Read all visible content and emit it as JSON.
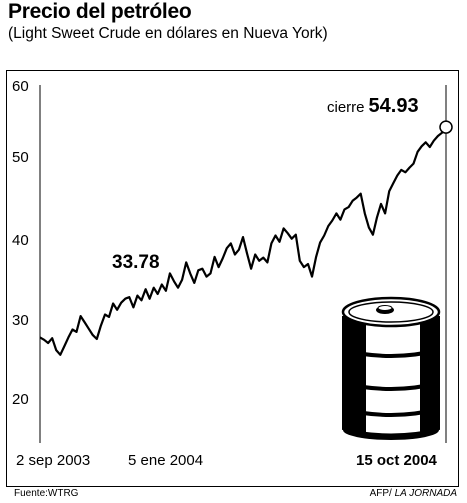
{
  "header": {
    "title": "Precio del petróleo",
    "subtitle": "(Light Sweet Crude en dólares en Nueva York)"
  },
  "footer": {
    "source": "Fuente:WTRG",
    "credit_prefix": "AFP/",
    "credit_paper": "LA JORNADA"
  },
  "annotations": {
    "start_value": "33.78",
    "peak_prefix": "cierre",
    "peak_value": "54.93"
  },
  "colors": {
    "line": "#000000",
    "marker_fill": "#ffffff",
    "axis": "#000000"
  },
  "decor": {
    "icon": "oil-barrel-icon"
  },
  "chart_data": {
    "type": "line",
    "title": "Precio del petróleo",
    "subtitle": "(Light Sweet Crude en dólares en Nueva York)",
    "xlabel": "",
    "ylabel": "",
    "ylim": [
      15,
      60
    ],
    "yticks": [
      "60",
      "50",
      "40",
      "30",
      "20"
    ],
    "ytick_values": [
      60,
      50,
      40,
      30,
      20
    ],
    "xticks": [
      "2 sep 2003",
      "5 ene 2004",
      "15 oct 2004"
    ],
    "xtick_positions": [
      0,
      0.3,
      1
    ],
    "grid": false,
    "series": [
      {
        "name": "",
        "x": [
          0,
          0.01,
          0.02,
          0.03,
          0.04,
          0.05,
          0.06,
          0.07,
          0.08,
          0.09,
          0.1,
          0.11,
          0.12,
          0.13,
          0.14,
          0.15,
          0.16,
          0.17,
          0.18,
          0.19,
          0.2,
          0.21,
          0.22,
          0.23,
          0.24,
          0.25,
          0.26,
          0.27,
          0.28,
          0.29,
          0.3,
          0.31,
          0.32,
          0.33,
          0.34,
          0.35,
          0.36,
          0.37,
          0.38,
          0.39,
          0.4,
          0.41,
          0.42,
          0.43,
          0.44,
          0.45,
          0.46,
          0.47,
          0.48,
          0.49,
          0.5,
          0.51,
          0.52,
          0.53,
          0.54,
          0.55,
          0.56,
          0.57,
          0.58,
          0.59,
          0.6,
          0.61,
          0.62,
          0.63,
          0.64,
          0.65,
          0.66,
          0.67,
          0.68,
          0.69,
          0.7,
          0.71,
          0.72,
          0.73,
          0.74,
          0.75,
          0.76,
          0.77,
          0.78,
          0.79,
          0.8,
          0.81,
          0.82,
          0.83,
          0.84,
          0.85,
          0.86,
          0.87,
          0.88,
          0.89,
          0.9,
          0.91,
          0.92,
          0.93,
          0.94,
          0.95,
          0.96,
          0.97,
          0.98,
          0.99,
          1.0
        ],
        "values": [
          28.3,
          28.0,
          27.6,
          28.2,
          26.7,
          26.1,
          27.2,
          28.3,
          29.3,
          29.0,
          31.0,
          30.2,
          29.4,
          28.6,
          28.1,
          29.8,
          31.2,
          30.9,
          32.6,
          31.8,
          32.7,
          33.2,
          33.4,
          32.1,
          33.6,
          33.0,
          34.4,
          33.2,
          34.6,
          33.8,
          35.0,
          34.2,
          36.4,
          35.4,
          34.6,
          35.6,
          37.8,
          36.4,
          35.2,
          36.8,
          37.0,
          36.0,
          36.4,
          38.5,
          37.2,
          38.3,
          39.6,
          40.2,
          38.8,
          39.4,
          41.0,
          38.9,
          37.0,
          38.8,
          38.0,
          38.4,
          37.8,
          40.2,
          41.2,
          40.4,
          42.1,
          41.5,
          40.8,
          41.3,
          38.0,
          37.2,
          37.6,
          36.0,
          38.5,
          40.3,
          41.2,
          42.4,
          43.1,
          44.0,
          43.2,
          44.5,
          44.8,
          45.6,
          46.0,
          46.5,
          44.0,
          42.2,
          41.3,
          43.5,
          45.2,
          44.0,
          46.8,
          47.8,
          48.8,
          49.5,
          49.2,
          49.8,
          50.3,
          51.8,
          52.5,
          53.0,
          52.4,
          53.2,
          53.8,
          54.2,
          54.93
        ]
      }
    ]
  }
}
